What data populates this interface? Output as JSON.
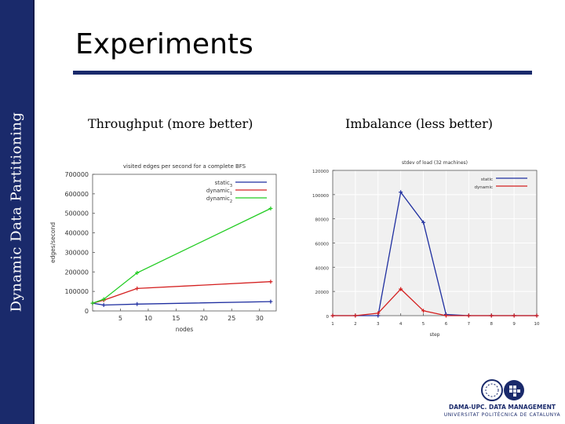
{
  "slide": {
    "sidebar_text": "Dynamic Data Partitioning",
    "title": "Experiments",
    "subtitle_left": "Throughput (more better)",
    "subtitle_right": "Imbalance (less better)",
    "accent_color": "#1a2a6b"
  },
  "logo": {
    "line1": "DAMA-UPC. DATA MANAGEMENT",
    "line2": "UNIVERSITAT POLITÈCNICA DE CATALUNYA"
  },
  "chart_data": [
    {
      "type": "line",
      "title": "visited edges per second for a complete BFS",
      "xlabel": "nodes",
      "ylabel": "edges/second",
      "xlim": [
        0,
        33
      ],
      "ylim": [
        0,
        700000
      ],
      "xticks": [
        5,
        10,
        15,
        20,
        25,
        30
      ],
      "yticks": [
        0,
        100000,
        200000,
        300000,
        400000,
        500000,
        600000,
        700000
      ],
      "legend": "top-right",
      "series": [
        {
          "name": "static",
          "subscript": "3",
          "color": "#1f2fa0",
          "x": [
            0,
            2,
            8,
            32
          ],
          "y": [
            40000,
            30000,
            35000,
            48000
          ]
        },
        {
          "name": "dynamic",
          "subscript": "1",
          "color": "#d42020",
          "x": [
            0,
            2,
            8,
            32
          ],
          "y": [
            40000,
            55000,
            115000,
            150000
          ]
        },
        {
          "name": "dynamic",
          "subscript": "2",
          "color": "#22cc22",
          "x": [
            0,
            2,
            8,
            32
          ],
          "y": [
            40000,
            60000,
            195000,
            525000
          ]
        }
      ]
    },
    {
      "type": "line",
      "title": "stdev of load (32 machines)",
      "xlabel": "step",
      "ylabel": "",
      "xlim": [
        1,
        10
      ],
      "ylim": [
        0,
        120000
      ],
      "xticks": [
        1,
        2,
        3,
        4,
        5,
        6,
        7,
        8,
        9,
        10
      ],
      "yticks": [
        0,
        20000,
        40000,
        60000,
        80000,
        100000,
        120000
      ],
      "legend": "top-right",
      "series": [
        {
          "name": "static",
          "color": "#1f2fa0",
          "x": [
            1,
            2,
            3,
            4,
            5,
            6,
            7,
            8,
            9,
            10
          ],
          "y": [
            0,
            0,
            0,
            102000,
            77000,
            1000,
            0,
            0,
            0,
            0
          ]
        },
        {
          "name": "dynamic",
          "color": "#d42020",
          "x": [
            1,
            2,
            3,
            4,
            5,
            6,
            7,
            8,
            9,
            10
          ],
          "y": [
            0,
            0,
            2000,
            22000,
            4000,
            0,
            0,
            0,
            0,
            0
          ]
        }
      ]
    }
  ]
}
